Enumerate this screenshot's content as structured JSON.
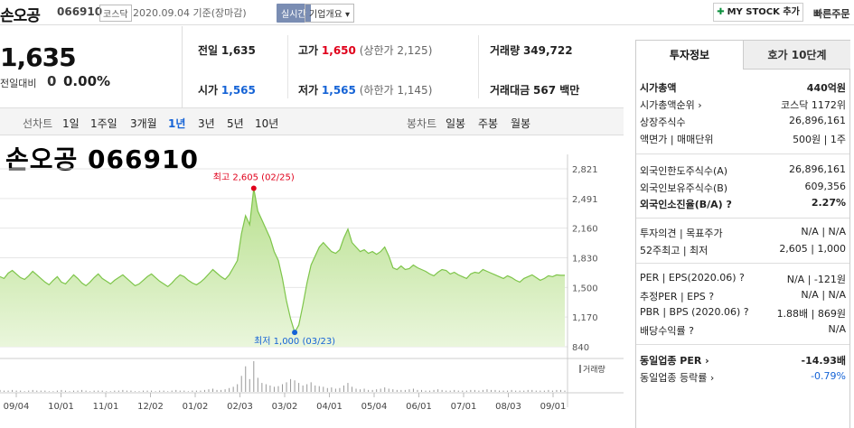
{
  "header": {
    "stock_name": "손오공",
    "stock_code": "066910",
    "market": "코스닥",
    "date_text": "2020.09.04 기준(장마감)",
    "realtime_label": "실시간",
    "company_info_label": "기업개요 ▾",
    "mystock_label": "MY STOCK 추가",
    "quick_order_label": "빠른주문"
  },
  "price": {
    "current": "1,635",
    "change_label": "전일대비",
    "change_value": "0",
    "change_pct": "0.00%"
  },
  "quote": {
    "prev_label": "전일",
    "prev_value": "1,635",
    "high_label": "고가",
    "high_value": "1,650",
    "upper_limit": "(상한가 2,125)",
    "volume_label": "거래량",
    "volume_value": "349,722",
    "open_label": "시가",
    "open_value": "1,565",
    "low_label": "저가",
    "low_value": "1,565",
    "lower_limit": "(하한가 1,145)",
    "amount_label": "거래대금",
    "amount_value": "567 백만"
  },
  "periods": {
    "line_label": "선차트",
    "items": [
      "1일",
      "1주일",
      "3개월",
      "1년",
      "3년",
      "5년",
      "10년"
    ],
    "active": "1년",
    "candle_label": "봉차트",
    "candle_items": [
      "일봉",
      "주봉",
      "월봉"
    ]
  },
  "chart_data": {
    "type": "area",
    "title": "손오공 066910",
    "y_ticks": [
      "2,821",
      "2,491",
      "2,160",
      "1,830",
      "1,500",
      "1,170",
      "840"
    ],
    "ylim": [
      840,
      2821
    ],
    "x_ticks": [
      "09/04",
      "10/01",
      "11/01",
      "12/02",
      "01/02",
      "02/03",
      "03/02",
      "04/01",
      "05/04",
      "06/01",
      "07/01",
      "08/03",
      "09/01"
    ],
    "high_label": "최고 2,605 (02/25)",
    "low_label": "최저 1,000 (03/23)",
    "high_value": 2605,
    "low_value": 1000,
    "volume_label": "거래량",
    "values": [
      1620,
      1600,
      1660,
      1690,
      1650,
      1610,
      1590,
      1630,
      1680,
      1640,
      1600,
      1560,
      1530,
      1580,
      1620,
      1560,
      1540,
      1590,
      1640,
      1600,
      1550,
      1520,
      1560,
      1610,
      1650,
      1600,
      1570,
      1540,
      1580,
      1610,
      1640,
      1600,
      1560,
      1520,
      1540,
      1580,
      1620,
      1650,
      1610,
      1570,
      1540,
      1510,
      1550,
      1600,
      1640,
      1620,
      1580,
      1550,
      1530,
      1560,
      1600,
      1650,
      1700,
      1660,
      1620,
      1590,
      1640,
      1720,
      1800,
      2100,
      2300,
      2200,
      2605,
      2350,
      2250,
      2150,
      2050,
      1900,
      1800,
      1600,
      1350,
      1150,
      1000,
      1080,
      1300,
      1550,
      1750,
      1850,
      1950,
      2000,
      1950,
      1900,
      1880,
      1920,
      2050,
      2150,
      2000,
      1950,
      1900,
      1920,
      1880,
      1900,
      1870,
      1900,
      1950,
      1850,
      1720,
      1700,
      1740,
      1700,
      1710,
      1750,
      1720,
      1700,
      1680,
      1650,
      1630,
      1670,
      1700,
      1690,
      1650,
      1670,
      1640,
      1620,
      1600,
      1650,
      1670,
      1660,
      1700,
      1680,
      1660,
      1640,
      1620,
      1600,
      1630,
      1610,
      1580,
      1560,
      1600,
      1620,
      1640,
      1610,
      1580,
      1600,
      1630,
      1620,
      1640,
      1635,
      1635
    ],
    "volumes": [
      3,
      2,
      2,
      3,
      2,
      2,
      1,
      2,
      3,
      2,
      2,
      2,
      1,
      1,
      2,
      3,
      2,
      1,
      2,
      2,
      3,
      2,
      1,
      2,
      2,
      2,
      1,
      1,
      2,
      2,
      3,
      2,
      2,
      1,
      1,
      2,
      2,
      2,
      1,
      2,
      2,
      1,
      2,
      3,
      2,
      2,
      1,
      2,
      2,
      2,
      3,
      4,
      5,
      3,
      3,
      4,
      6,
      8,
      12,
      25,
      40,
      20,
      48,
      22,
      14,
      12,
      10,
      8,
      9,
      12,
      15,
      20,
      18,
      14,
      10,
      12,
      15,
      10,
      9,
      8,
      6,
      7,
      5,
      6,
      10,
      14,
      8,
      5,
      4,
      5,
      3,
      3,
      4,
      5,
      7,
      5,
      4,
      3,
      3,
      3,
      4,
      5,
      3,
      3,
      2,
      2,
      3,
      4,
      3,
      2,
      2,
      3,
      2,
      2,
      2,
      3,
      3,
      2,
      3,
      4,
      3,
      3,
      2,
      2,
      2,
      3,
      2,
      2,
      2,
      3,
      3,
      2,
      2,
      2,
      3,
      2,
      3,
      3,
      2
    ]
  },
  "sidebar": {
    "tab_active": "투자정보",
    "tab_other": "호가 10단계",
    "rows": [
      {
        "k": "시가총액",
        "v": "440억원",
        "bold": true
      },
      {
        "k": "시가총액순위 ›",
        "v": "코스닥 1172위"
      },
      {
        "k": "상장주식수",
        "v": "26,896,161"
      },
      {
        "k": "액면가 | 매매단위",
        "v": "500원 | 1주"
      },
      {
        "k": "외국인한도주식수(A)",
        "v": "26,896,161"
      },
      {
        "k": "외국인보유주식수(B)",
        "v": "609,356"
      },
      {
        "k": "외국인소진율(B/A) ?",
        "v": "2.27%",
        "bold": true
      },
      {
        "k": "투자의견 | 목표주가",
        "v": "N/A | N/A"
      },
      {
        "k": "52주최고 | 최저",
        "v": "2,605 | 1,000"
      },
      {
        "k": "PER | EPS(2020.06) ?",
        "v": "N/A | -121원"
      },
      {
        "k": "추정PER | EPS ?",
        "v": "N/A | N/A"
      },
      {
        "k": "PBR | BPS (2020.06) ?",
        "v": "1.88배 | 869원"
      },
      {
        "k": "배당수익률 ?",
        "v": "N/A"
      },
      {
        "k": "동일업종 PER ›",
        "v": "-14.93배",
        "bold": true
      },
      {
        "k": "동일업종 등락률 ›",
        "v": "-0.79%",
        "blue": true
      }
    ]
  }
}
